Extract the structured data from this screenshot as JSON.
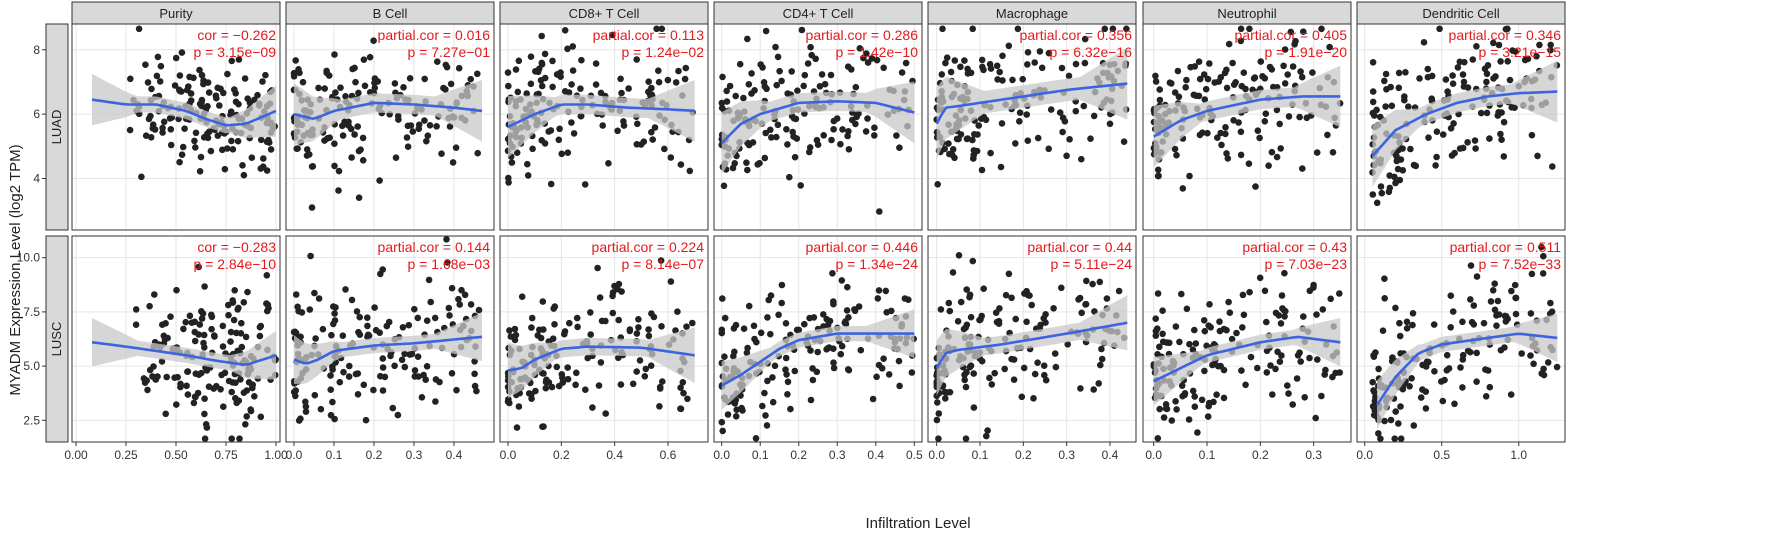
{
  "figure": {
    "y_axis_title": "MYADM Expression Level (log2 TPM)",
    "x_axis_title": "Infiltration Level"
  },
  "chart_data": {
    "type": "scatter",
    "columns": [
      "Purity",
      "B Cell",
      "CD8+ T Cell",
      "CD4+ T Cell",
      "Macrophage",
      "Neutrophil",
      "Dendritic Cell"
    ],
    "rows": [
      "LUAD",
      "LUSC"
    ],
    "colors": {
      "points": "#222222",
      "smooth": "#3d64e0",
      "band": "#c8c8c8",
      "annotation": "#e41a1c",
      "strip": "#d9d9d9"
    },
    "grid": true,
    "x_axes": [
      {
        "range": [
          -0.02,
          1.02
        ],
        "ticks": [
          "0.00",
          "0.25",
          "0.50",
          "0.75",
          "1.00"
        ]
      },
      {
        "range": [
          -0.02,
          0.5
        ],
        "ticks": [
          "0.0",
          "0.1",
          "0.2",
          "0.3",
          "0.4"
        ]
      },
      {
        "range": [
          -0.03,
          0.75
        ],
        "ticks": [
          "0.0",
          "0.2",
          "0.4",
          "0.6"
        ]
      },
      {
        "range": [
          -0.02,
          0.52
        ],
        "ticks": [
          "0.0",
          "0.1",
          "0.2",
          "0.3",
          "0.4",
          "0.5"
        ]
      },
      {
        "range": [
          -0.02,
          0.46
        ],
        "ticks": [
          "0.0",
          "0.1",
          "0.2",
          "0.3",
          "0.4"
        ]
      },
      {
        "range": [
          -0.02,
          0.37
        ],
        "ticks": [
          "0.0",
          "0.1",
          "0.2",
          "0.3"
        ]
      },
      {
        "range": [
          -0.05,
          1.3
        ],
        "ticks": [
          "0.0",
          "0.5",
          "1.0"
        ]
      }
    ],
    "y_axes": [
      {
        "row": "LUAD",
        "range": [
          2.4,
          8.8
        ],
        "ticks": [
          "4",
          "6",
          "8"
        ]
      },
      {
        "row": "LUSC",
        "range": [
          1.5,
          11.0
        ],
        "ticks": [
          "2.5",
          "5.0",
          "7.5",
          "10.0"
        ]
      }
    ],
    "panels": [
      [
        {
          "stat": [
            "cor = −0.262",
            "p = 3.15e−09"
          ],
          "xr": [
            0.08,
            1.0
          ],
          "cloud": [
            6.2,
            0.85
          ],
          "smooth": [
            [
              0.08,
              6.45
            ],
            [
              0.25,
              6.3
            ],
            [
              0.4,
              6.3
            ],
            [
              0.55,
              6.1
            ],
            [
              0.65,
              5.85
            ],
            [
              0.75,
              5.65
            ],
            [
              0.85,
              5.7
            ],
            [
              1.0,
              6.1
            ]
          ],
          "band": 0.25
        },
        {
          "stat": [
            "partial.cor = 0.016",
            "p = 7.27e−01"
          ],
          "xr": [
            0.0,
            0.47
          ],
          "cloud": [
            6.1,
            1.0
          ],
          "smooth": [
            [
              0.0,
              6.0
            ],
            [
              0.05,
              5.85
            ],
            [
              0.1,
              6.1
            ],
            [
              0.2,
              6.35
            ],
            [
              0.3,
              6.3
            ],
            [
              0.4,
              6.2
            ],
            [
              0.47,
              6.1
            ]
          ],
          "band": 0.3
        },
        {
          "stat": [
            "partial.cor = 0.113",
            "p = 1.24e−02"
          ],
          "xr": [
            0.0,
            0.7
          ],
          "cloud": [
            6.1,
            1.0
          ],
          "smooth": [
            [
              0.0,
              5.6
            ],
            [
              0.1,
              6.0
            ],
            [
              0.2,
              6.3
            ],
            [
              0.3,
              6.3
            ],
            [
              0.45,
              6.2
            ],
            [
              0.6,
              6.15
            ],
            [
              0.7,
              6.1
            ]
          ],
          "band": 0.3
        },
        {
          "stat": [
            "partial.cor = 0.286",
            "p = 1.42e−10"
          ],
          "xr": [
            0.0,
            0.5
          ],
          "cloud": [
            6.1,
            1.0
          ],
          "smooth": [
            [
              0.0,
              5.1
            ],
            [
              0.05,
              5.7
            ],
            [
              0.1,
              6.0
            ],
            [
              0.2,
              6.35
            ],
            [
              0.3,
              6.4
            ],
            [
              0.4,
              6.35
            ],
            [
              0.5,
              6.05
            ]
          ],
          "band": 0.3
        },
        {
          "stat": [
            "partial.cor = 0.356",
            "p = 6.32e−16"
          ],
          "xr": [
            0.0,
            0.44
          ],
          "cloud": [
            6.1,
            1.05
          ],
          "smooth": [
            [
              0.0,
              5.7
            ],
            [
              0.02,
              6.2
            ],
            [
              0.05,
              6.25
            ],
            [
              0.15,
              6.45
            ],
            [
              0.3,
              6.75
            ],
            [
              0.44,
              6.95
            ]
          ],
          "band": 0.35
        },
        {
          "stat": [
            "partial.cor = 0.405",
            "p = 1.91e−20"
          ],
          "xr": [
            0.0,
            0.35
          ],
          "cloud": [
            6.1,
            1.0
          ],
          "smooth": [
            [
              0.0,
              5.3
            ],
            [
              0.05,
              5.8
            ],
            [
              0.1,
              6.1
            ],
            [
              0.2,
              6.45
            ],
            [
              0.28,
              6.55
            ],
            [
              0.35,
              6.55
            ]
          ],
          "band": 0.3
        },
        {
          "stat": [
            "partial.cor = 0.346",
            "p = 3.21e−15"
          ],
          "xr": [
            0.05,
            1.25
          ],
          "cloud": [
            6.1,
            1.0
          ],
          "smooth": [
            [
              0.05,
              4.7
            ],
            [
              0.2,
              5.5
            ],
            [
              0.4,
              6.0
            ],
            [
              0.6,
              6.35
            ],
            [
              0.8,
              6.55
            ],
            [
              1.0,
              6.65
            ],
            [
              1.25,
              6.7
            ]
          ],
          "band": 0.3
        }
      ],
      [
        {
          "stat": [
            "cor = −0.283",
            "p = 2.84e−10"
          ],
          "xr": [
            0.08,
            1.0
          ],
          "cloud": [
            5.8,
            1.45
          ],
          "smooth": [
            [
              0.08,
              6.1
            ],
            [
              0.25,
              5.9
            ],
            [
              0.4,
              5.7
            ],
            [
              0.55,
              5.5
            ],
            [
              0.7,
              5.25
            ],
            [
              0.85,
              5.05
            ],
            [
              1.0,
              5.5
            ]
          ],
          "band": 0.35
        },
        {
          "stat": [
            "partial.cor = 0.144",
            "p = 1.68e−03"
          ],
          "xr": [
            0.0,
            0.47
          ],
          "cloud": [
            5.9,
            1.5
          ],
          "smooth": [
            [
              0.0,
              5.3
            ],
            [
              0.03,
              5.1
            ],
            [
              0.06,
              5.3
            ],
            [
              0.1,
              5.7
            ],
            [
              0.2,
              5.95
            ],
            [
              0.3,
              6.05
            ],
            [
              0.47,
              6.35
            ]
          ],
          "band": 0.35
        },
        {
          "stat": [
            "partial.cor = 0.224",
            "p = 8.14e−07"
          ],
          "xr": [
            0.0,
            0.7
          ],
          "cloud": [
            5.8,
            1.5
          ],
          "smooth": [
            [
              0.0,
              4.8
            ],
            [
              0.05,
              4.9
            ],
            [
              0.1,
              5.3
            ],
            [
              0.2,
              5.8
            ],
            [
              0.3,
              5.9
            ],
            [
              0.5,
              5.85
            ],
            [
              0.7,
              5.5
            ]
          ],
          "band": 0.4
        },
        {
          "stat": [
            "partial.cor = 0.446",
            "p = 1.34e−24"
          ],
          "xr": [
            0.0,
            0.5
          ],
          "cloud": [
            6.0,
            1.5
          ],
          "smooth": [
            [
              0.0,
              4.1
            ],
            [
              0.05,
              4.6
            ],
            [
              0.1,
              5.2
            ],
            [
              0.15,
              5.8
            ],
            [
              0.2,
              6.2
            ],
            [
              0.3,
              6.5
            ],
            [
              0.5,
              6.5
            ]
          ],
          "band": 0.35
        },
        {
          "stat": [
            "partial.cor = 0.44",
            "p = 5.11e−24"
          ],
          "xr": [
            0.0,
            0.44
          ],
          "cloud": [
            6.0,
            1.5
          ],
          "smooth": [
            [
              0.0,
              4.9
            ],
            [
              0.02,
              5.6
            ],
            [
              0.05,
              5.75
            ],
            [
              0.15,
              6.0
            ],
            [
              0.3,
              6.5
            ],
            [
              0.44,
              7.0
            ]
          ],
          "band": 0.4
        },
        {
          "stat": [
            "partial.cor = 0.43",
            "p = 7.03e−23"
          ],
          "xr": [
            0.0,
            0.35
          ],
          "cloud": [
            5.9,
            1.5
          ],
          "smooth": [
            [
              0.0,
              4.3
            ],
            [
              0.05,
              4.9
            ],
            [
              0.1,
              5.5
            ],
            [
              0.2,
              6.1
            ],
            [
              0.27,
              6.35
            ],
            [
              0.35,
              6.1
            ]
          ],
          "band": 0.35
        },
        {
          "stat": [
            "partial.cor = 0.511",
            "p = 7.52e−33"
          ],
          "xr": [
            0.05,
            1.25
          ],
          "cloud": [
            6.0,
            1.5
          ],
          "smooth": [
            [
              0.08,
              3.2
            ],
            [
              0.2,
              4.5
            ],
            [
              0.35,
              5.6
            ],
            [
              0.5,
              6.0
            ],
            [
              0.8,
              6.3
            ],
            [
              1.0,
              6.5
            ],
            [
              1.25,
              6.3
            ]
          ],
          "band": 0.35
        }
      ]
    ]
  }
}
